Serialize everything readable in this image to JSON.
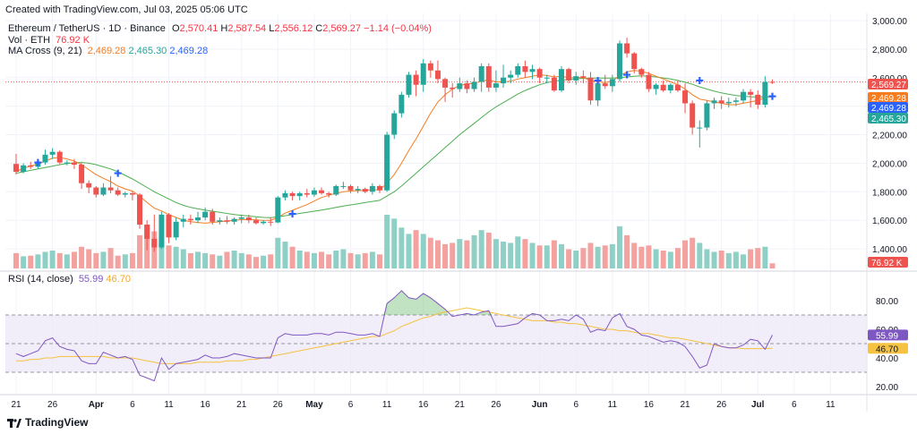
{
  "created_note": "Created with TradingView.com, Jul 03, 2025 05:06 UTC",
  "legend": {
    "symbol": "Ethereum / TetherUS · 1D · Binance",
    "o_label": "O",
    "o": "2,570.41",
    "h_label": "H",
    "h": "2,587.54",
    "l_label": "L",
    "l": "2,556.12",
    "c_label": "C",
    "c": "2,569.27",
    "change": "−1.14 (−0.04%)",
    "vol_label": "Vol · ETH",
    "vol": "76.92 K",
    "ma_label": "MA Cross (9, 21)",
    "ma_fast": "2,469.28",
    "ma_slow": "2,465.30",
    "ma_cross": "2,469.28",
    "rsi_label": "RSI (14, close)",
    "rsi": "55.99",
    "rsi_ma": "46.70"
  },
  "footer": {
    "brand": "TradingView"
  },
  "colors": {
    "up": "#26a69a",
    "down": "#ef5350",
    "vol_up": "#8fd0c6",
    "vol_down": "#f3a2a0",
    "ma_fast": "#f57c1f",
    "ma_slow": "#4caf50",
    "cross": "#2962ff",
    "rsi": "#7e57c2",
    "rsi_ma": "#f5c242",
    "rsi_band": "#ede7f6",
    "grid": "#f0f3fa",
    "axis_text": "#131722"
  },
  "chart_data": [
    {
      "type": "candlestick",
      "symbol": "ETHUSDT",
      "ylim": [
        1250,
        3050
      ],
      "y_ticks": [
        "3,000.00",
        "2,800.00",
        "2,600.00",
        "2,400.00",
        "2,200.00",
        "2,000.00",
        "1,800.00",
        "1,600.00",
        "1,400.00"
      ],
      "y_tick_values": [
        3000,
        2800,
        2600,
        2400,
        2200,
        2000,
        1800,
        1600,
        1400
      ],
      "x_ticks": [
        "21",
        "26",
        "Apr",
        "6",
        "11",
        "16",
        "21",
        "26",
        "May",
        "6",
        "11",
        "16",
        "21",
        "26",
        "Jun",
        "6",
        "11",
        "16",
        "21",
        "26",
        "Jul",
        "6",
        "11"
      ],
      "x_tick_days": [
        0,
        5,
        11,
        16,
        21,
        26,
        31,
        36,
        41,
        46,
        51,
        56,
        61,
        66,
        72,
        77,
        82,
        87,
        92,
        97,
        102,
        107,
        112
      ],
      "last_day": 104,
      "last_price": 2569.27,
      "price_labels": [
        {
          "text": "2,569.27",
          "value": 2569.27,
          "color": "#ef5350"
        },
        {
          "text": "2,469.28",
          "value": 2469.28,
          "color": "#f57c1f"
        },
        {
          "text": "2,469.28",
          "value": 2469.28,
          "color": "#2962ff"
        },
        {
          "text": "2,465.30",
          "value": 2465.3,
          "color": "#26a69a"
        }
      ],
      "candles": [
        [
          1995,
          2065,
          1920,
          1940
        ],
        [
          1940,
          2000,
          1930,
          1985
        ],
        [
          1985,
          2010,
          1960,
          1975
        ],
        [
          1975,
          2020,
          1960,
          2005
        ],
        [
          2005,
          2095,
          1990,
          2060
        ],
        [
          2060,
          2105,
          2030,
          2080
        ],
        [
          2080,
          2090,
          1995,
          2005
        ],
        [
          2005,
          2020,
          1985,
          2005
        ],
        [
          2005,
          2030,
          1960,
          1990
        ],
        [
          1990,
          2000,
          1820,
          1860
        ],
        [
          1860,
          1880,
          1790,
          1830
        ],
        [
          1830,
          1840,
          1760,
          1780
        ],
        [
          1780,
          1860,
          1770,
          1830
        ],
        [
          1830,
          1910,
          1790,
          1810
        ],
        [
          1810,
          1830,
          1770,
          1780
        ],
        [
          1780,
          1800,
          1760,
          1790
        ],
        [
          1790,
          1800,
          1740,
          1780
        ],
        [
          1780,
          1790,
          1540,
          1570
        ],
        [
          1570,
          1600,
          1390,
          1470
        ],
        [
          1470,
          1640,
          1380,
          1410
        ],
        [
          1410,
          1660,
          1400,
          1640
        ],
        [
          1640,
          1650,
          1440,
          1480
        ],
        [
          1480,
          1620,
          1460,
          1590
        ],
        [
          1590,
          1640,
          1550,
          1610
        ],
        [
          1610,
          1640,
          1570,
          1600
        ],
        [
          1600,
          1660,
          1580,
          1620
        ],
        [
          1620,
          1690,
          1600,
          1660
        ],
        [
          1660,
          1680,
          1570,
          1590
        ],
        [
          1590,
          1620,
          1570,
          1600
        ],
        [
          1600,
          1630,
          1575,
          1590
        ],
        [
          1590,
          1620,
          1570,
          1610
        ],
        [
          1610,
          1640,
          1580,
          1620
        ],
        [
          1620,
          1640,
          1580,
          1600
        ],
        [
          1600,
          1620,
          1570,
          1580
        ],
        [
          1580,
          1600,
          1570,
          1590
        ],
        [
          1590,
          1620,
          1560,
          1585
        ],
        [
          1585,
          1770,
          1580,
          1760
        ],
        [
          1760,
          1810,
          1740,
          1790
        ],
        [
          1790,
          1800,
          1740,
          1770
        ],
        [
          1770,
          1800,
          1740,
          1790
        ],
        [
          1790,
          1820,
          1760,
          1780
        ],
        [
          1780,
          1830,
          1765,
          1810
        ],
        [
          1810,
          1830,
          1780,
          1790
        ],
        [
          1790,
          1800,
          1760,
          1780
        ],
        [
          1780,
          1850,
          1770,
          1840
        ],
        [
          1840,
          1870,
          1820,
          1840
        ],
        [
          1840,
          1850,
          1790,
          1810
        ],
        [
          1810,
          1840,
          1790,
          1820
        ],
        [
          1820,
          1830,
          1790,
          1800
        ],
        [
          1800,
          1860,
          1780,
          1840
        ],
        [
          1840,
          1850,
          1790,
          1810
        ],
        [
          1810,
          2220,
          1800,
          2200
        ],
        [
          2200,
          2370,
          2170,
          2350
        ],
        [
          2350,
          2500,
          2320,
          2480
        ],
        [
          2480,
          2640,
          2460,
          2620
        ],
        [
          2620,
          2650,
          2470,
          2550
        ],
        [
          2550,
          2730,
          2500,
          2700
        ],
        [
          2700,
          2720,
          2600,
          2650
        ],
        [
          2650,
          2720,
          2560,
          2590
        ],
        [
          2590,
          2600,
          2430,
          2530
        ],
        [
          2530,
          2560,
          2460,
          2520
        ],
        [
          2520,
          2600,
          2500,
          2560
        ],
        [
          2560,
          2580,
          2490,
          2520
        ],
        [
          2520,
          2600,
          2500,
          2570
        ],
        [
          2570,
          2700,
          2500,
          2680
        ],
        [
          2680,
          2700,
          2500,
          2530
        ],
        [
          2530,
          2650,
          2500,
          2560
        ],
        [
          2560,
          2690,
          2530,
          2600
        ],
        [
          2600,
          2650,
          2560,
          2620
        ],
        [
          2620,
          2700,
          2600,
          2680
        ],
        [
          2680,
          2720,
          2600,
          2640
        ],
        [
          2640,
          2690,
          2590,
          2660
        ],
        [
          2660,
          2670,
          2560,
          2600
        ],
        [
          2600,
          2620,
          2560,
          2600
        ],
        [
          2600,
          2620,
          2500,
          2510
        ],
        [
          2510,
          2680,
          2500,
          2660
        ],
        [
          2660,
          2670,
          2560,
          2580
        ],
        [
          2580,
          2640,
          2550,
          2610
        ],
        [
          2610,
          2650,
          2560,
          2600
        ],
        [
          2600,
          2640,
          2410,
          2440
        ],
        [
          2440,
          2600,
          2400,
          2560
        ],
        [
          2560,
          2620,
          2520,
          2540
        ],
        [
          2540,
          2620,
          2500,
          2590
        ],
        [
          2590,
          2860,
          2570,
          2840
        ],
        [
          2840,
          2880,
          2740,
          2770
        ],
        [
          2770,
          2780,
          2630,
          2660
        ],
        [
          2660,
          2670,
          2600,
          2620
        ],
        [
          2620,
          2640,
          2500,
          2520
        ],
        [
          2520,
          2560,
          2480,
          2550
        ],
        [
          2550,
          2580,
          2500,
          2510
        ],
        [
          2510,
          2560,
          2490,
          2550
        ],
        [
          2550,
          2580,
          2500,
          2510
        ],
        [
          2510,
          2560,
          2350,
          2420
        ],
        [
          2420,
          2440,
          2200,
          2250
        ],
        [
          2250,
          2300,
          2110,
          2250
        ],
        [
          2250,
          2440,
          2230,
          2420
        ],
        [
          2420,
          2460,
          2380,
          2440
        ],
        [
          2440,
          2470,
          2380,
          2420
        ],
        [
          2420,
          2460,
          2390,
          2430
        ],
        [
          2430,
          2460,
          2400,
          2440
        ],
        [
          2440,
          2520,
          2420,
          2500
        ],
        [
          2500,
          2520,
          2390,
          2480
        ],
        [
          2480,
          2510,
          2380,
          2410
        ],
        [
          2410,
          2610,
          2390,
          2570
        ],
        [
          2570.41,
          2587.54,
          2556.12,
          2569.27
        ]
      ],
      "volume": [
        120,
        95,
        100,
        110,
        130,
        140,
        120,
        110,
        130,
        170,
        150,
        120,
        130,
        160,
        100,
        110,
        120,
        260,
        340,
        290,
        230,
        180,
        170,
        150,
        120,
        130,
        120,
        110,
        100,
        130,
        140,
        120,
        110,
        90,
        100,
        110,
        240,
        210,
        170,
        140,
        130,
        120,
        130,
        110,
        140,
        150,
        120,
        110,
        120,
        130,
        110,
        420,
        390,
        320,
        270,
        300,
        270,
        240,
        220,
        190,
        200,
        230,
        220,
        260,
        300,
        280,
        230,
        210,
        200,
        250,
        230,
        200,
        180,
        180,
        220,
        190,
        150,
        140,
        160,
        200,
        170,
        180,
        190,
        330,
        260,
        200,
        170,
        180,
        150,
        140,
        130,
        160,
        220,
        240,
        200,
        150,
        130,
        140,
        120,
        130,
        110,
        150,
        160,
        170,
        40
      ],
      "ma_fast": [
        1940,
        1965,
        1980,
        1995,
        2015,
        2035,
        2040,
        2030,
        2015,
        1990,
        1955,
        1920,
        1895,
        1870,
        1840,
        1820,
        1805,
        1770,
        1725,
        1685,
        1665,
        1640,
        1620,
        1600,
        1590,
        1585,
        1580,
        1585,
        1590,
        1595,
        1600,
        1605,
        1605,
        1603,
        1600,
        1600,
        1620,
        1650,
        1670,
        1690,
        1710,
        1735,
        1760,
        1775,
        1790,
        1800,
        1805,
        1808,
        1810,
        1815,
        1812,
        1860,
        1920,
        2000,
        2090,
        2170,
        2260,
        2350,
        2430,
        2480,
        2520,
        2545,
        2555,
        2560,
        2575,
        2585,
        2570,
        2570,
        2575,
        2590,
        2600,
        2610,
        2620,
        2615,
        2605,
        2610,
        2600,
        2600,
        2600,
        2580,
        2570,
        2565,
        2575,
        2615,
        2640,
        2650,
        2645,
        2630,
        2610,
        2590,
        2570,
        2550,
        2520,
        2480,
        2450,
        2440,
        2430,
        2420,
        2410,
        2410,
        2420,
        2430,
        2440,
        2460,
        2469.28
      ],
      "ma_slow": [
        1930,
        1940,
        1950,
        1960,
        1970,
        1980,
        1990,
        1998,
        2003,
        2005,
        2000,
        1990,
        1975,
        1960,
        1940,
        1915,
        1890,
        1860,
        1830,
        1800,
        1775,
        1750,
        1725,
        1705,
        1690,
        1680,
        1672,
        1664,
        1656,
        1648,
        1640,
        1635,
        1630,
        1625,
        1620,
        1618,
        1625,
        1632,
        1640,
        1648,
        1656,
        1664,
        1672,
        1680,
        1690,
        1700,
        1708,
        1716,
        1724,
        1732,
        1740,
        1770,
        1800,
        1840,
        1885,
        1930,
        1975,
        2020,
        2065,
        2110,
        2155,
        2200,
        2240,
        2280,
        2320,
        2360,
        2395,
        2425,
        2455,
        2485,
        2510,
        2530,
        2550,
        2565,
        2575,
        2582,
        2588,
        2592,
        2595,
        2597,
        2597,
        2597,
        2597,
        2600,
        2605,
        2610,
        2612,
        2610,
        2605,
        2598,
        2590,
        2580,
        2568,
        2553,
        2535,
        2520,
        2505,
        2493,
        2483,
        2475,
        2470,
        2466,
        2464,
        2465,
        2465.3
      ],
      "cross_markers": [
        {
          "day": 3,
          "value": 2005
        },
        {
          "day": 14,
          "value": 1930
        },
        {
          "day": 38,
          "value": 1645
        },
        {
          "day": 80,
          "value": 2580
        },
        {
          "day": 84,
          "value": 2620
        },
        {
          "day": 94,
          "value": 2580
        },
        {
          "day": 104,
          "value": 2469.28
        }
      ]
    },
    {
      "type": "line",
      "title": "RSI (14, close)",
      "ylim": [
        15,
        95
      ],
      "y_ticks": [
        "80.00",
        "60.00",
        "40.00",
        "20.00"
      ],
      "y_tick_values": [
        80,
        60,
        40,
        20
      ],
      "band": [
        30,
        70
      ],
      "midline": 50,
      "rsi_label": "55.99",
      "rsi_ma_label": "46.70",
      "rsi": [
        43,
        41,
        43,
        45,
        52,
        54,
        48,
        46,
        45,
        38,
        36,
        36,
        44,
        42,
        40,
        41,
        39,
        28,
        26,
        24,
        40,
        32,
        36,
        37,
        38,
        39,
        42,
        40,
        40,
        41,
        43,
        42,
        41,
        40,
        40,
        40,
        54,
        57,
        56,
        56,
        56,
        57,
        57,
        56,
        58,
        58,
        57,
        56,
        56,
        57,
        55,
        78,
        82,
        87,
        82,
        81,
        85,
        82,
        78,
        74,
        69,
        70,
        71,
        70,
        72,
        73,
        62,
        62,
        63,
        64,
        68,
        71,
        70,
        66,
        66,
        67,
        66,
        70,
        67,
        58,
        60,
        59,
        68,
        71,
        62,
        60,
        56,
        55,
        53,
        51,
        52,
        51,
        48,
        41,
        33,
        35,
        50,
        48,
        47,
        47,
        49,
        53,
        52,
        46,
        55.99
      ],
      "rsi_ma": [
        38,
        38,
        39,
        39,
        40,
        40,
        41,
        41,
        41,
        41,
        41,
        41,
        41,
        40,
        40,
        40,
        40,
        39,
        38,
        37,
        36,
        36,
        36,
        36,
        36,
        37,
        37,
        37,
        37,
        38,
        38,
        38,
        39,
        39,
        40,
        41,
        42,
        43,
        44,
        45,
        46,
        47,
        48,
        49,
        50,
        51,
        52,
        53,
        54,
        55,
        55,
        57,
        59,
        62,
        64,
        66,
        68,
        69,
        71,
        72,
        73,
        74,
        75,
        74,
        73,
        72,
        71,
        70,
        69,
        68,
        67,
        66,
        66,
        66,
        65,
        65,
        64,
        64,
        63,
        62,
        61,
        60,
        60,
        59,
        59,
        58,
        57,
        57,
        56,
        55,
        54,
        54,
        53,
        52,
        51,
        50,
        49,
        48,
        47,
        47,
        46.5,
        46.5,
        46.5,
        46.6,
        46.7
      ]
    }
  ]
}
